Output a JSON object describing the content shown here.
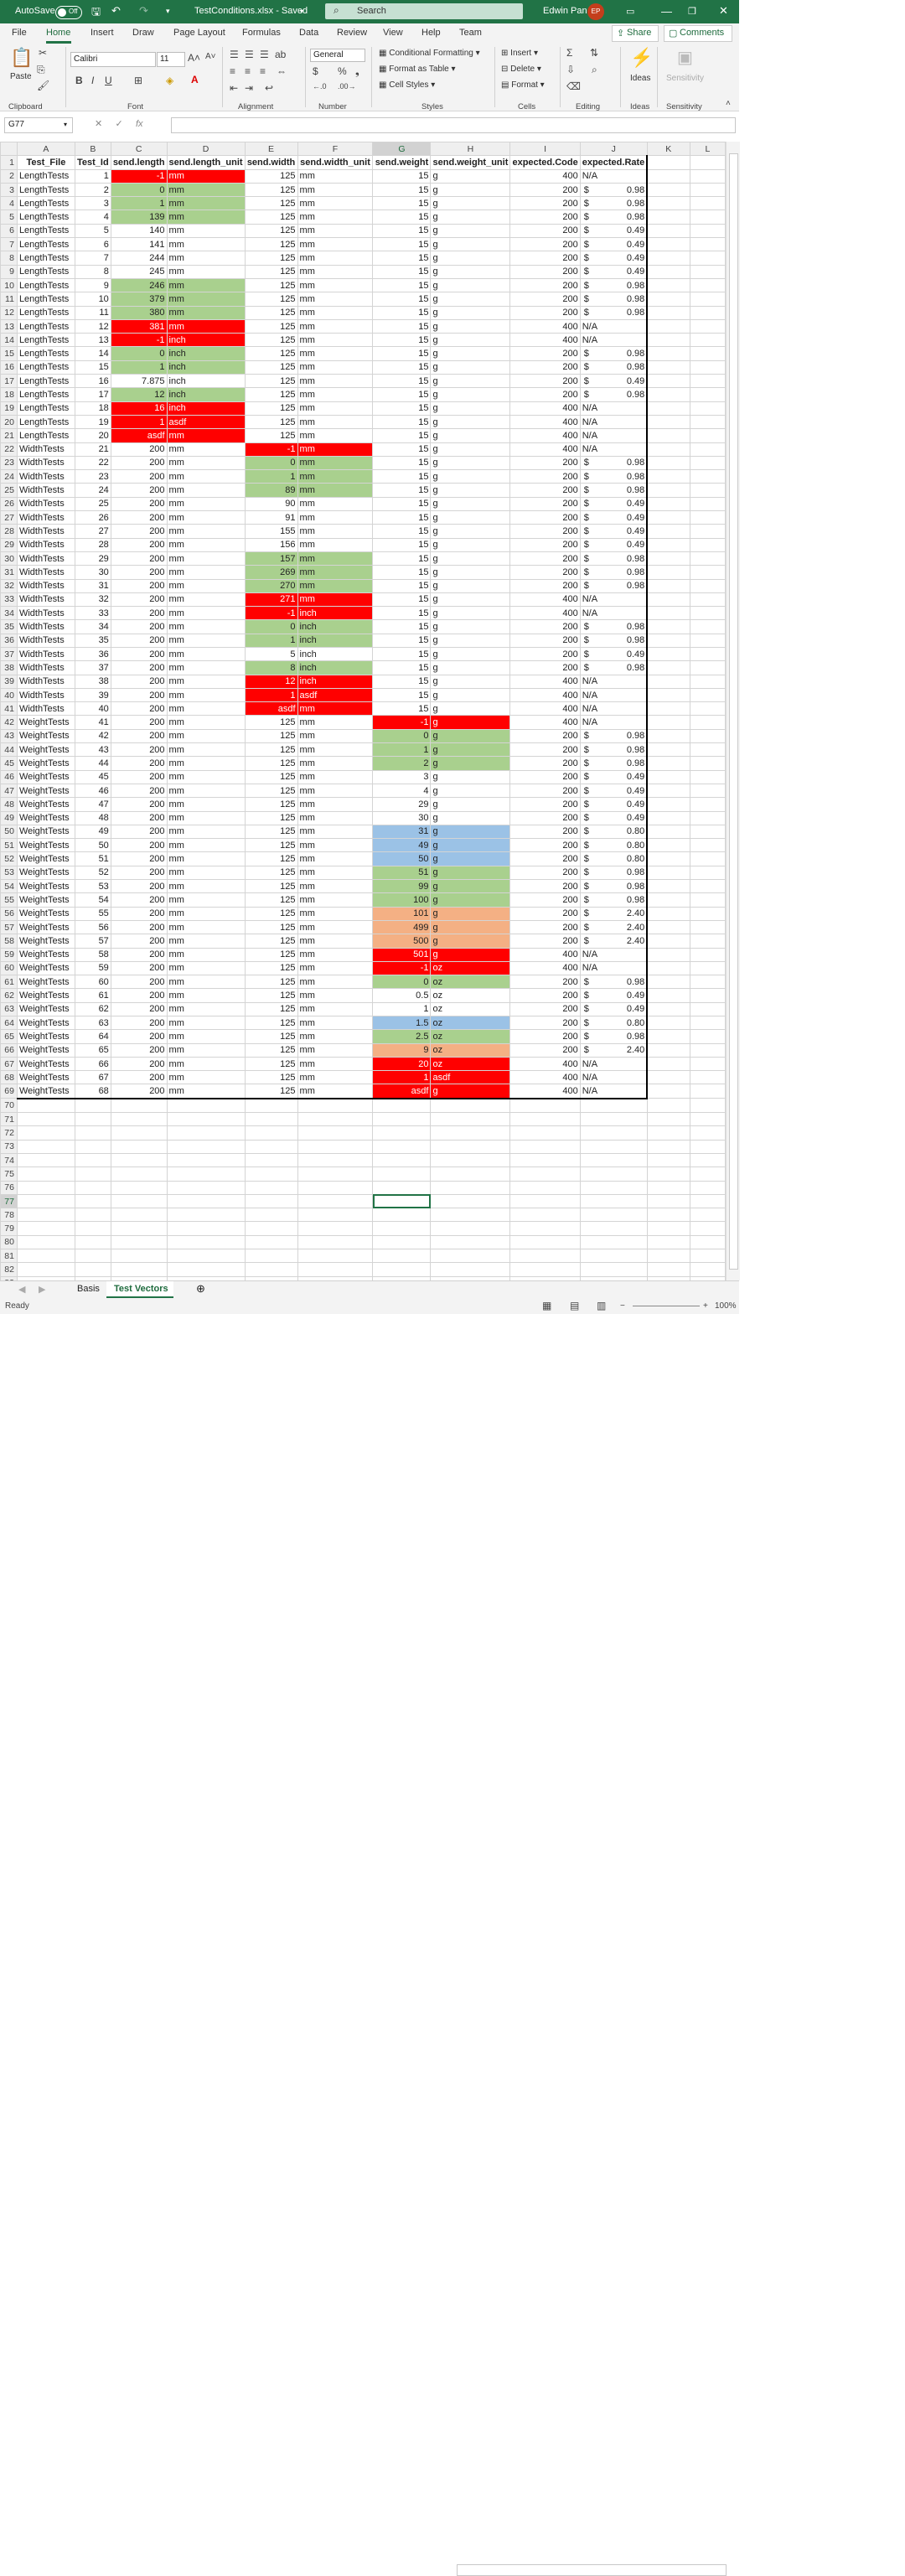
{
  "titlebar": {
    "autosave_label": "AutoSave",
    "autosave_state": "Off",
    "filename": "TestConditions.xlsx - Saved",
    "search_placeholder": "Search",
    "user_name": "Edwin Pan",
    "user_initials": "EP",
    "accent": "#217346"
  },
  "menu": {
    "tabs": [
      "File",
      "Home",
      "Insert",
      "Draw",
      "Page Layout",
      "Formulas",
      "Data",
      "Review",
      "View",
      "Help",
      "Team"
    ],
    "active": "Home",
    "share": "Share",
    "comments": "Comments"
  },
  "ribbon": {
    "paste": "Paste",
    "font_name": "Calibri",
    "font_size": "11",
    "number_format": "General",
    "conditional_formatting": "Conditional Formatting",
    "format_as_table": "Format as Table",
    "cell_styles": "Cell Styles",
    "insert": "Insert",
    "delete": "Delete",
    "format": "Format",
    "ideas": "Ideas",
    "sensitivity": "Sensitivity",
    "groups": [
      "Clipboard",
      "Font",
      "Alignment",
      "Number",
      "Styles",
      "Cells",
      "Editing",
      "Ideas",
      "Sensitivity"
    ]
  },
  "formula_bar": {
    "name_box": "G77",
    "fx": "fx",
    "content": ""
  },
  "sheet": {
    "column_letters": [
      "A",
      "B",
      "C",
      "D",
      "E",
      "F",
      "G",
      "H",
      "I",
      "J",
      "K",
      "L"
    ],
    "header": [
      "Test_File",
      "Test_Id",
      "send.length",
      "send.length_unit",
      "send.width",
      "send.width_unit",
      "send.weight",
      "send.weight_unit",
      "expected.Code",
      "expected.Rate"
    ],
    "rows": [
      [
        "LengthTests",
        "1",
        "-1",
        "mm",
        "125",
        "mm",
        "15",
        "g",
        "400",
        "N/A"
      ],
      [
        "LengthTests",
        "2",
        "0",
        "mm",
        "125",
        "mm",
        "15",
        "g",
        "200",
        "0.98"
      ],
      [
        "LengthTests",
        "3",
        "1",
        "mm",
        "125",
        "mm",
        "15",
        "g",
        "200",
        "0.98"
      ],
      [
        "LengthTests",
        "4",
        "139",
        "mm",
        "125",
        "mm",
        "15",
        "g",
        "200",
        "0.98"
      ],
      [
        "LengthTests",
        "5",
        "140",
        "mm",
        "125",
        "mm",
        "15",
        "g",
        "200",
        "0.49"
      ],
      [
        "LengthTests",
        "6",
        "141",
        "mm",
        "125",
        "mm",
        "15",
        "g",
        "200",
        "0.49"
      ],
      [
        "LengthTests",
        "7",
        "244",
        "mm",
        "125",
        "mm",
        "15",
        "g",
        "200",
        "0.49"
      ],
      [
        "LengthTests",
        "8",
        "245",
        "mm",
        "125",
        "mm",
        "15",
        "g",
        "200",
        "0.49"
      ],
      [
        "LengthTests",
        "9",
        "246",
        "mm",
        "125",
        "mm",
        "15",
        "g",
        "200",
        "0.98"
      ],
      [
        "LengthTests",
        "10",
        "379",
        "mm",
        "125",
        "mm",
        "15",
        "g",
        "200",
        "0.98"
      ],
      [
        "LengthTests",
        "11",
        "380",
        "mm",
        "125",
        "mm",
        "15",
        "g",
        "200",
        "0.98"
      ],
      [
        "LengthTests",
        "12",
        "381",
        "mm",
        "125",
        "mm",
        "15",
        "g",
        "400",
        "N/A"
      ],
      [
        "LengthTests",
        "13",
        "-1",
        "inch",
        "125",
        "mm",
        "15",
        "g",
        "400",
        "N/A"
      ],
      [
        "LengthTests",
        "14",
        "0",
        "inch",
        "125",
        "mm",
        "15",
        "g",
        "200",
        "0.98"
      ],
      [
        "LengthTests",
        "15",
        "1",
        "inch",
        "125",
        "mm",
        "15",
        "g",
        "200",
        "0.98"
      ],
      [
        "LengthTests",
        "16",
        "7.875",
        "inch",
        "125",
        "mm",
        "15",
        "g",
        "200",
        "0.49"
      ],
      [
        "LengthTests",
        "17",
        "12",
        "inch",
        "125",
        "mm",
        "15",
        "g",
        "200",
        "0.98"
      ],
      [
        "LengthTests",
        "18",
        "16",
        "inch",
        "125",
        "mm",
        "15",
        "g",
        "400",
        "N/A"
      ],
      [
        "LengthTests",
        "19",
        "1",
        "asdf",
        "125",
        "mm",
        "15",
        "g",
        "400",
        "N/A"
      ],
      [
        "LengthTests",
        "20",
        "asdf",
        "mm",
        "125",
        "mm",
        "15",
        "g",
        "400",
        "N/A"
      ],
      [
        "WidthTests",
        "21",
        "200",
        "mm",
        "-1",
        "mm",
        "15",
        "g",
        "400",
        "N/A"
      ],
      [
        "WidthTests",
        "22",
        "200",
        "mm",
        "0",
        "mm",
        "15",
        "g",
        "200",
        "0.98"
      ],
      [
        "WidthTests",
        "23",
        "200",
        "mm",
        "1",
        "mm",
        "15",
        "g",
        "200",
        "0.98"
      ],
      [
        "WidthTests",
        "24",
        "200",
        "mm",
        "89",
        "mm",
        "15",
        "g",
        "200",
        "0.98"
      ],
      [
        "WidthTests",
        "25",
        "200",
        "mm",
        "90",
        "mm",
        "15",
        "g",
        "200",
        "0.49"
      ],
      [
        "WidthTests",
        "26",
        "200",
        "mm",
        "91",
        "mm",
        "15",
        "g",
        "200",
        "0.49"
      ],
      [
        "WidthTests",
        "27",
        "200",
        "mm",
        "155",
        "mm",
        "15",
        "g",
        "200",
        "0.49"
      ],
      [
        "WidthTests",
        "28",
        "200",
        "mm",
        "156",
        "mm",
        "15",
        "g",
        "200",
        "0.49"
      ],
      [
        "WidthTests",
        "29",
        "200",
        "mm",
        "157",
        "mm",
        "15",
        "g",
        "200",
        "0.98"
      ],
      [
        "WidthTests",
        "30",
        "200",
        "mm",
        "269",
        "mm",
        "15",
        "g",
        "200",
        "0.98"
      ],
      [
        "WidthTests",
        "31",
        "200",
        "mm",
        "270",
        "mm",
        "15",
        "g",
        "200",
        "0.98"
      ],
      [
        "WidthTests",
        "32",
        "200",
        "mm",
        "271",
        "mm",
        "15",
        "g",
        "400",
        "N/A"
      ],
      [
        "WidthTests",
        "33",
        "200",
        "mm",
        "-1",
        "inch",
        "15",
        "g",
        "400",
        "N/A"
      ],
      [
        "WidthTests",
        "34",
        "200",
        "mm",
        "0",
        "inch",
        "15",
        "g",
        "200",
        "0.98"
      ],
      [
        "WidthTests",
        "35",
        "200",
        "mm",
        "1",
        "inch",
        "15",
        "g",
        "200",
        "0.98"
      ],
      [
        "WidthTests",
        "36",
        "200",
        "mm",
        "5",
        "inch",
        "15",
        "g",
        "200",
        "0.49"
      ],
      [
        "WidthTests",
        "37",
        "200",
        "mm",
        "8",
        "inch",
        "15",
        "g",
        "200",
        "0.98"
      ],
      [
        "WidthTests",
        "38",
        "200",
        "mm",
        "12",
        "inch",
        "15",
        "g",
        "400",
        "N/A"
      ],
      [
        "WidthTests",
        "39",
        "200",
        "mm",
        "1",
        "asdf",
        "15",
        "g",
        "400",
        "N/A"
      ],
      [
        "WidthTests",
        "40",
        "200",
        "mm",
        "asdf",
        "mm",
        "15",
        "g",
        "400",
        "N/A"
      ],
      [
        "WeightTests",
        "41",
        "200",
        "mm",
        "125",
        "mm",
        "-1",
        "g",
        "400",
        "N/A"
      ],
      [
        "WeightTests",
        "42",
        "200",
        "mm",
        "125",
        "mm",
        "0",
        "g",
        "200",
        "0.98"
      ],
      [
        "WeightTests",
        "43",
        "200",
        "mm",
        "125",
        "mm",
        "1",
        "g",
        "200",
        "0.98"
      ],
      [
        "WeightTests",
        "44",
        "200",
        "mm",
        "125",
        "mm",
        "2",
        "g",
        "200",
        "0.98"
      ],
      [
        "WeightTests",
        "45",
        "200",
        "mm",
        "125",
        "mm",
        "3",
        "g",
        "200",
        "0.49"
      ],
      [
        "WeightTests",
        "46",
        "200",
        "mm",
        "125",
        "mm",
        "4",
        "g",
        "200",
        "0.49"
      ],
      [
        "WeightTests",
        "47",
        "200",
        "mm",
        "125",
        "mm",
        "29",
        "g",
        "200",
        "0.49"
      ],
      [
        "WeightTests",
        "48",
        "200",
        "mm",
        "125",
        "mm",
        "30",
        "g",
        "200",
        "0.49"
      ],
      [
        "WeightTests",
        "49",
        "200",
        "mm",
        "125",
        "mm",
        "31",
        "g",
        "200",
        "0.80"
      ],
      [
        "WeightTests",
        "50",
        "200",
        "mm",
        "125",
        "mm",
        "49",
        "g",
        "200",
        "0.80"
      ],
      [
        "WeightTests",
        "51",
        "200",
        "mm",
        "125",
        "mm",
        "50",
        "g",
        "200",
        "0.80"
      ],
      [
        "WeightTests",
        "52",
        "200",
        "mm",
        "125",
        "mm",
        "51",
        "g",
        "200",
        "0.98"
      ],
      [
        "WeightTests",
        "53",
        "200",
        "mm",
        "125",
        "mm",
        "99",
        "g",
        "200",
        "0.98"
      ],
      [
        "WeightTests",
        "54",
        "200",
        "mm",
        "125",
        "mm",
        "100",
        "g",
        "200",
        "0.98"
      ],
      [
        "WeightTests",
        "55",
        "200",
        "mm",
        "125",
        "mm",
        "101",
        "g",
        "200",
        "2.40"
      ],
      [
        "WeightTests",
        "56",
        "200",
        "mm",
        "125",
        "mm",
        "499",
        "g",
        "200",
        "2.40"
      ],
      [
        "WeightTests",
        "57",
        "200",
        "mm",
        "125",
        "mm",
        "500",
        "g",
        "200",
        "2.40"
      ],
      [
        "WeightTests",
        "58",
        "200",
        "mm",
        "125",
        "mm",
        "501",
        "g",
        "400",
        "N/A"
      ],
      [
        "WeightTests",
        "59",
        "200",
        "mm",
        "125",
        "mm",
        "-1",
        "oz",
        "400",
        "N/A"
      ],
      [
        "WeightTests",
        "60",
        "200",
        "mm",
        "125",
        "mm",
        "0",
        "oz",
        "200",
        "0.98"
      ],
      [
        "WeightTests",
        "61",
        "200",
        "mm",
        "125",
        "mm",
        "0.5",
        "oz",
        "200",
        "0.49"
      ],
      [
        "WeightTests",
        "62",
        "200",
        "mm",
        "125",
        "mm",
        "1",
        "oz",
        "200",
        "0.49"
      ],
      [
        "WeightTests",
        "63",
        "200",
        "mm",
        "125",
        "mm",
        "1.5",
        "oz",
        "200",
        "0.80"
      ],
      [
        "WeightTests",
        "64",
        "200",
        "mm",
        "125",
        "mm",
        "2.5",
        "oz",
        "200",
        "0.98"
      ],
      [
        "WeightTests",
        "65",
        "200",
        "mm",
        "125",
        "mm",
        "9",
        "oz",
        "200",
        "2.40"
      ],
      [
        "WeightTests",
        "66",
        "200",
        "mm",
        "125",
        "mm",
        "20",
        "oz",
        "400",
        "N/A"
      ],
      [
        "WeightTests",
        "67",
        "200",
        "mm",
        "125",
        "mm",
        "1",
        "asdf",
        "400",
        "N/A"
      ],
      [
        "WeightTests",
        "68",
        "200",
        "mm",
        "125",
        "mm",
        "asdf",
        "g",
        "400",
        "N/A"
      ]
    ],
    "fills": [
      "red",
      "green",
      "green",
      "green",
      "",
      "",
      "",
      "",
      "green",
      "green",
      "green",
      "red",
      "red",
      "green",
      "green",
      "",
      "green",
      "red",
      "red",
      "red",
      "red",
      "green",
      "green",
      "green",
      "",
      "",
      "",
      "",
      "green",
      "green",
      "green",
      "red",
      "red",
      "green",
      "green",
      "",
      "green",
      "red",
      "red",
      "red",
      "red",
      "green",
      "green",
      "green",
      "",
      "",
      "",
      "",
      "blue",
      "blue",
      "blue",
      "green",
      "green",
      "green",
      "orange",
      "orange",
      "orange",
      "red",
      "red",
      "green",
      "",
      "",
      "blue",
      "green",
      "orange",
      "red",
      "red",
      "red"
    ],
    "currency_symbol": "$",
    "total_rows_shown": 83,
    "selected_cell": "G77",
    "fill_colors": {
      "red": "#ff0000",
      "green": "#a9d08e",
      "blue": "#9bc2e6",
      "orange": "#f4b084"
    }
  },
  "sheet_tabs": {
    "tabs": [
      "Basis",
      "Test Vectors"
    ],
    "active": "Test Vectors"
  },
  "status": {
    "left": "Ready",
    "zoom": "100%"
  }
}
